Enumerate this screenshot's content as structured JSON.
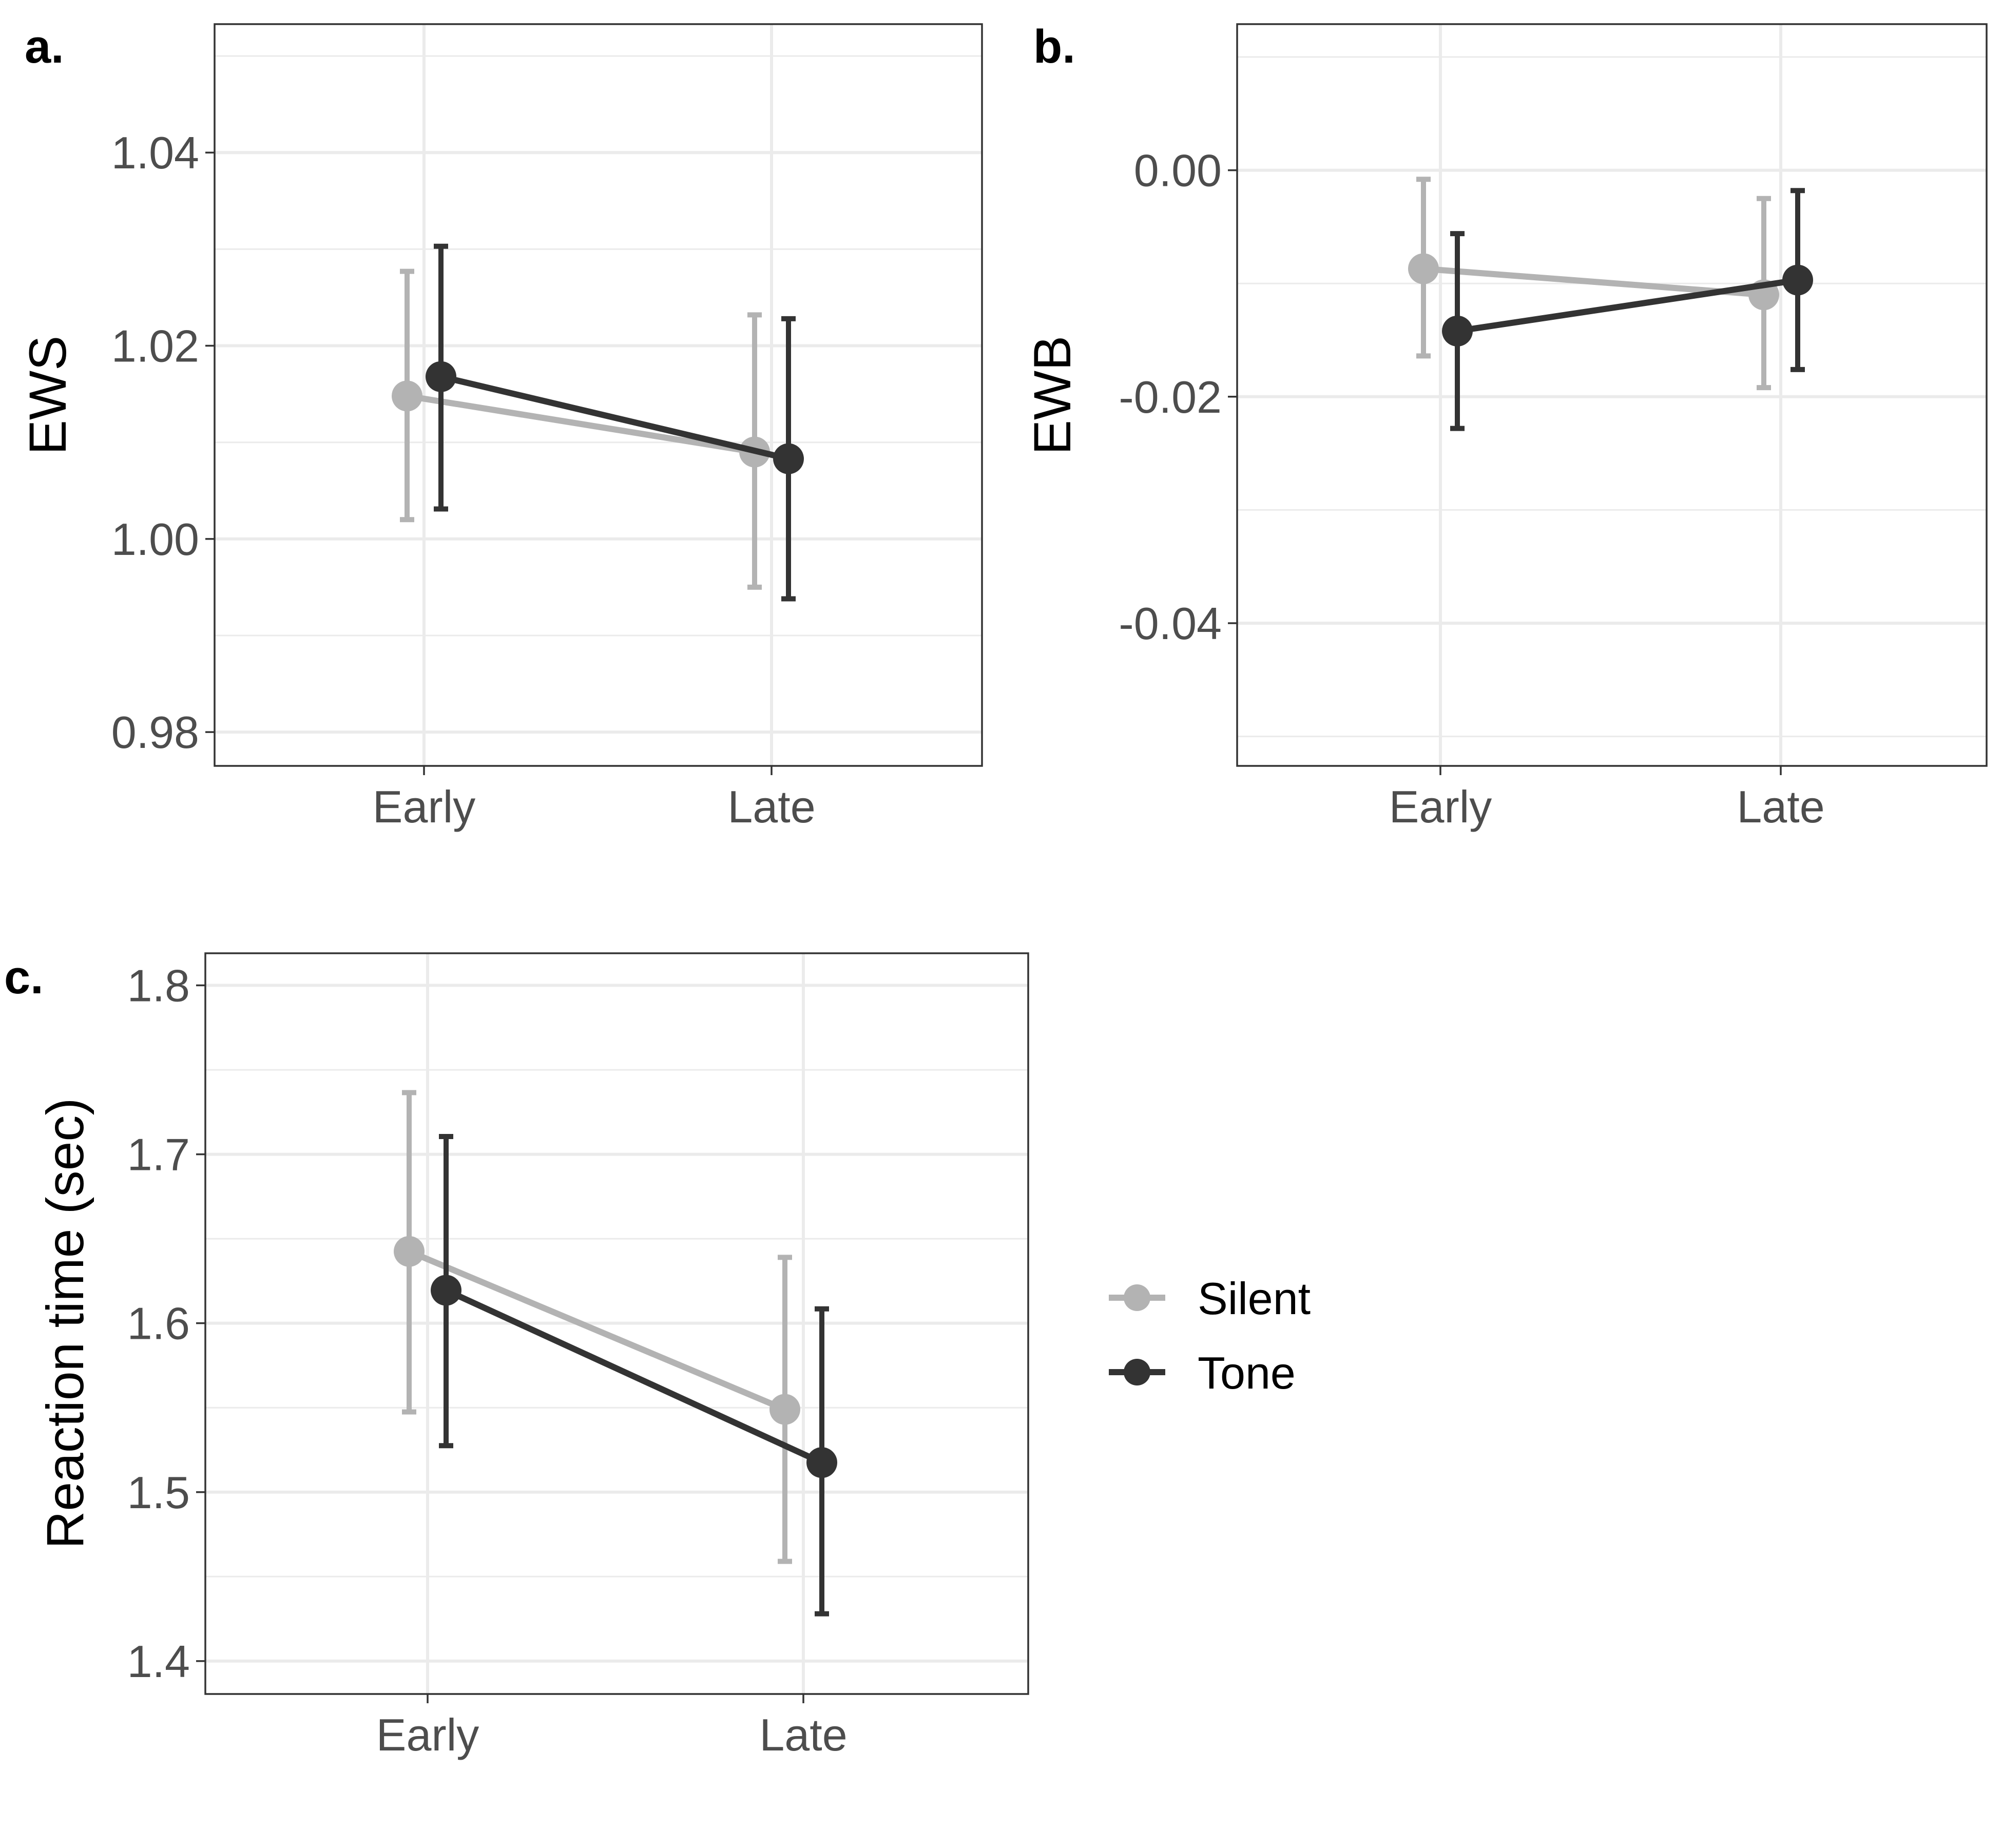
{
  "colors": {
    "Silent": "#b3b3b3",
    "Tone": "#333333",
    "grid": "#ebebeb",
    "panel_border": "#333333",
    "tick_text": "#4d4d4d"
  },
  "legend": {
    "items": [
      {
        "name": "Silent",
        "color": "#b3b3b3"
      },
      {
        "name": "Tone",
        "color": "#333333"
      }
    ],
    "placement": "right of panel c"
  },
  "chart_data": [
    {
      "panel": "a.",
      "type": "line",
      "xlabel": "",
      "ylabel": "EWS",
      "categories": [
        "Early",
        "Late"
      ],
      "ylim": [
        0.9765,
        1.0533
      ],
      "yticks": [
        0.98,
        1.0,
        1.02,
        1.04
      ],
      "ytick_labels": [
        "0.98",
        "1.00",
        "1.02",
        "1.04"
      ],
      "grid": true,
      "series": [
        {
          "name": "Silent",
          "values": [
            1.0148,
            1.009
          ],
          "err_low": [
            1.002,
            0.995
          ],
          "err_high": [
            1.0277,
            1.0232
          ]
        },
        {
          "name": "Tone",
          "values": [
            1.0168,
            1.0083
          ],
          "err_low": [
            1.0031,
            0.9938
          ],
          "err_high": [
            1.0303,
            1.0228
          ]
        }
      ]
    },
    {
      "panel": "b.",
      "type": "line",
      "xlabel": "",
      "ylabel": "EWB",
      "categories": [
        "Early",
        "Late"
      ],
      "ylim": [
        -0.0526,
        0.0129
      ],
      "yticks": [
        -0.04,
        -0.02,
        0.0
      ],
      "ytick_labels": [
        "-0.04",
        "-0.02",
        "0.00"
      ],
      "grid": true,
      "series": [
        {
          "name": "Silent",
          "values": [
            -0.0087,
            -0.011
          ],
          "err_low": [
            -0.0164,
            -0.0192
          ],
          "err_high": [
            -0.0008,
            -0.0025
          ]
        },
        {
          "name": "Tone",
          "values": [
            -0.0142,
            -0.0097
          ],
          "err_low": [
            -0.0228,
            -0.0176
          ],
          "err_high": [
            -0.0056,
            -0.0018
          ]
        }
      ]
    },
    {
      "panel": "c.",
      "type": "line",
      "xlabel": "",
      "ylabel": "Reaction time (sec)",
      "categories": [
        "Early",
        "Late"
      ],
      "ylim": [
        1.3805,
        1.819
      ],
      "yticks": [
        1.4,
        1.5,
        1.6,
        1.7,
        1.8
      ],
      "ytick_labels": [
        "1.4",
        "1.5",
        "1.6",
        "1.7",
        "1.8"
      ],
      "grid": true,
      "series": [
        {
          "name": "Silent",
          "values": [
            1.6425,
            1.549
          ],
          "err_low": [
            1.5475,
            1.459
          ],
          "err_high": [
            1.7365,
            1.639
          ]
        },
        {
          "name": "Tone",
          "values": [
            1.6195,
            1.5175
          ],
          "err_low": [
            1.5275,
            1.428
          ],
          "err_high": [
            1.7105,
            1.6085
          ]
        }
      ]
    }
  ]
}
